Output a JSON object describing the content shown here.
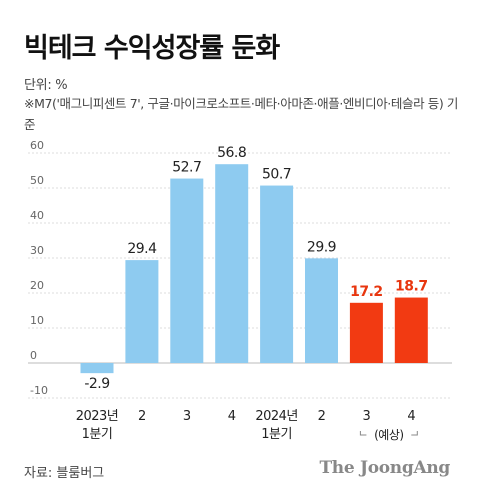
{
  "header": {
    "title": "빅테크 수익성장률 둔화",
    "unit": "단위: %",
    "note": "※M7('매그니피센트 7', 구글·마이크로소프트·메타·아마존·애플·엔비디아·테슬라 등) 기준"
  },
  "footer": {
    "source": "자료: 블룸버그",
    "brand": "The JoongAng"
  },
  "colors": {
    "actual": "#8ecbf0",
    "forecast": "#f23a12",
    "forecast_label": "#e8360f",
    "axis_text": "#666666",
    "grid": "#dddddd"
  },
  "chart_data": {
    "type": "bar",
    "categories": [
      "2023년\n1분기",
      "2",
      "3",
      "4",
      "2024년\n1분기",
      "2",
      "3",
      "4"
    ],
    "values": [
      -2.9,
      29.4,
      52.7,
      56.8,
      50.7,
      29.9,
      17.2,
      18.7
    ],
    "value_labels": [
      "-2.9",
      "29.4",
      "52.7",
      "56.8",
      "50.7",
      "29.9",
      "17.2",
      "18.7"
    ],
    "forecast_flags": [
      false,
      false,
      false,
      false,
      false,
      false,
      true,
      true
    ],
    "forecast_bracket_label": "(예상)",
    "title": "빅테크 수익성장률 둔화",
    "xlabel": "",
    "ylabel": "",
    "ylim": [
      -10,
      60
    ],
    "yticks": [
      60,
      50,
      40,
      30,
      20,
      10,
      0,
      -10
    ],
    "grid": true
  }
}
